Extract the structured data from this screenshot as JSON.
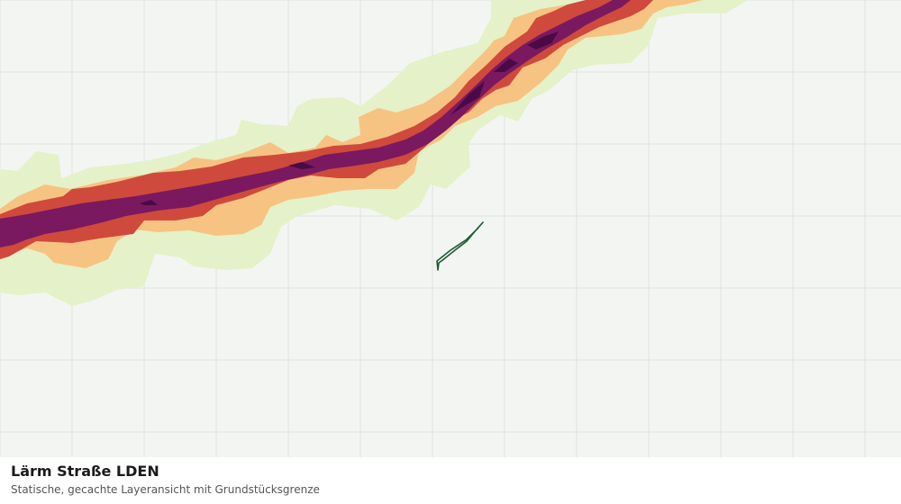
{
  "map": {
    "layer_colors": {
      "background": "#f3f5f2",
      "grid": "#dfe3df",
      "noise_low": "#e5f1c9",
      "noise_mid": "#f6c383",
      "noise_high": "#cf4a3c",
      "noise_very_high": "#7a1960",
      "noise_extreme": "#4a0a45",
      "parcel_boundary": "#1f5a35",
      "parcel_fill": "#eef3ea"
    }
  },
  "footer": {
    "title": "Lärm Straße LDEN",
    "subtitle": "Statische, gecachte Layeransicht mit Grundstücksgrenze"
  }
}
